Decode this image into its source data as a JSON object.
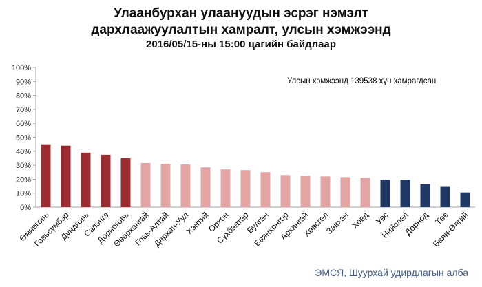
{
  "title_lines": [
    "Улаанбурхан улаануудын эсрэг нэмэлт",
    "дархлаажуулалтын хамралт, улсын хэмжээнд",
    "2016/05/15-ны 15:00 цагийн байдлаар"
  ],
  "source": "ЭМСЯ, Шуурхай удирдлагын алба",
  "colors": {
    "dark_red": "#9b2d30",
    "light_pink": "#e3a4a4",
    "navy": "#1f3864",
    "axis": "#a6a6a6"
  },
  "chart_data": {
    "type": "bar",
    "title": "Улаанбурхан улаануудын эсрэг нэмэлт дархлаажуулалтын хамралт, улсын хэмжээнд 2016/05/15-ны 15:00 цагийн байдлаар",
    "annotation": "Улсын хэмжээнд 139538 хүн хамрагдсан",
    "categories": [
      "Өмнөговь",
      "Говьсүмбэр",
      "Дундговь",
      "Сэлэнгэ",
      "Дорноговь",
      "Өвөрхангай",
      "Говь-Алтай",
      "Дархан-Уул",
      "Хэнтий",
      "Орхон",
      "Сүхбаатар",
      "Булган",
      "Баянхонгор",
      "Архангай",
      "Хөвсгөл",
      "Завхан",
      "Ховд",
      "Увс",
      "Нийслэл",
      "Дорнод",
      "Төв",
      "Баян-Өлгий"
    ],
    "values": [
      45,
      44,
      39,
      37.5,
      35,
      31.5,
      31,
      30.5,
      28.5,
      27,
      26.5,
      25,
      23,
      22.5,
      22,
      21.5,
      21,
      19.5,
      19.5,
      16.5,
      15,
      10.5
    ],
    "color_groups": [
      "dark_red",
      "dark_red",
      "dark_red",
      "dark_red",
      "dark_red",
      "light_pink",
      "light_pink",
      "light_pink",
      "light_pink",
      "light_pink",
      "light_pink",
      "light_pink",
      "light_pink",
      "light_pink",
      "light_pink",
      "light_pink",
      "light_pink",
      "navy",
      "navy",
      "navy",
      "navy",
      "navy"
    ],
    "ylim": [
      0,
      100
    ],
    "yticks": [
      "0%",
      "10%",
      "20%",
      "30%",
      "40%",
      "50%",
      "60%",
      "70%",
      "80%",
      "90%",
      "100%"
    ],
    "xlabel": "",
    "ylabel": "",
    "grid": false,
    "legend": "none"
  }
}
